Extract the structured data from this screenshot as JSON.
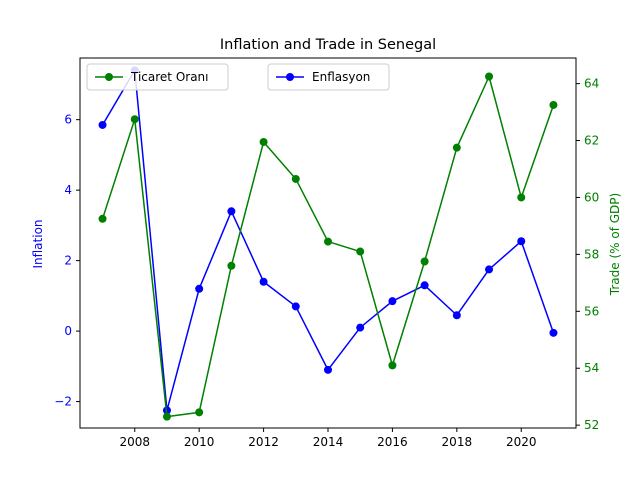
{
  "chart_data": {
    "type": "line",
    "title": "Inflation and Trade in Senegal",
    "x": [
      2007,
      2008,
      2009,
      2010,
      2011,
      2012,
      2013,
      2014,
      2015,
      2016,
      2017,
      2018,
      2019,
      2020,
      2021
    ],
    "xlim": [
      2006.3,
      2021.7
    ],
    "x_ticks": [
      2008,
      2010,
      2012,
      2014,
      2016,
      2018,
      2020
    ],
    "grid": false,
    "axes": {
      "left": {
        "label": "Inflation",
        "color": "#0000ff",
        "ylim": [
          -2.75,
          7.75
        ],
        "ticks": [
          -2,
          0,
          2,
          4,
          6
        ]
      },
      "right": {
        "label": "Trade (% of GDP)",
        "color": "#008000",
        "ylim": [
          51.9,
          64.9
        ],
        "ticks": [
          52,
          54,
          56,
          58,
          60,
          62,
          64
        ]
      }
    },
    "series": [
      {
        "name": "Enflasyon",
        "axis": "left",
        "color": "#0000ff",
        "marker": "circle",
        "values": [
          5.85,
          7.4,
          -2.25,
          1.2,
          3.4,
          1.4,
          0.7,
          -1.1,
          0.1,
          0.85,
          1.3,
          0.45,
          1.75,
          2.55,
          -0.05
        ]
      },
      {
        "name": "Ticaret Oranı",
        "axis": "right",
        "color": "#008000",
        "marker": "circle",
        "values": [
          59.25,
          62.75,
          52.3,
          52.45,
          57.6,
          61.95,
          60.65,
          58.45,
          58.1,
          54.1,
          57.75,
          61.75,
          64.25,
          60.0,
          63.25
        ]
      }
    ],
    "legends": [
      {
        "placement": "upper-left",
        "series": "Ticaret Oranı"
      },
      {
        "placement": "upper-center",
        "series": "Enflasyon"
      }
    ]
  }
}
